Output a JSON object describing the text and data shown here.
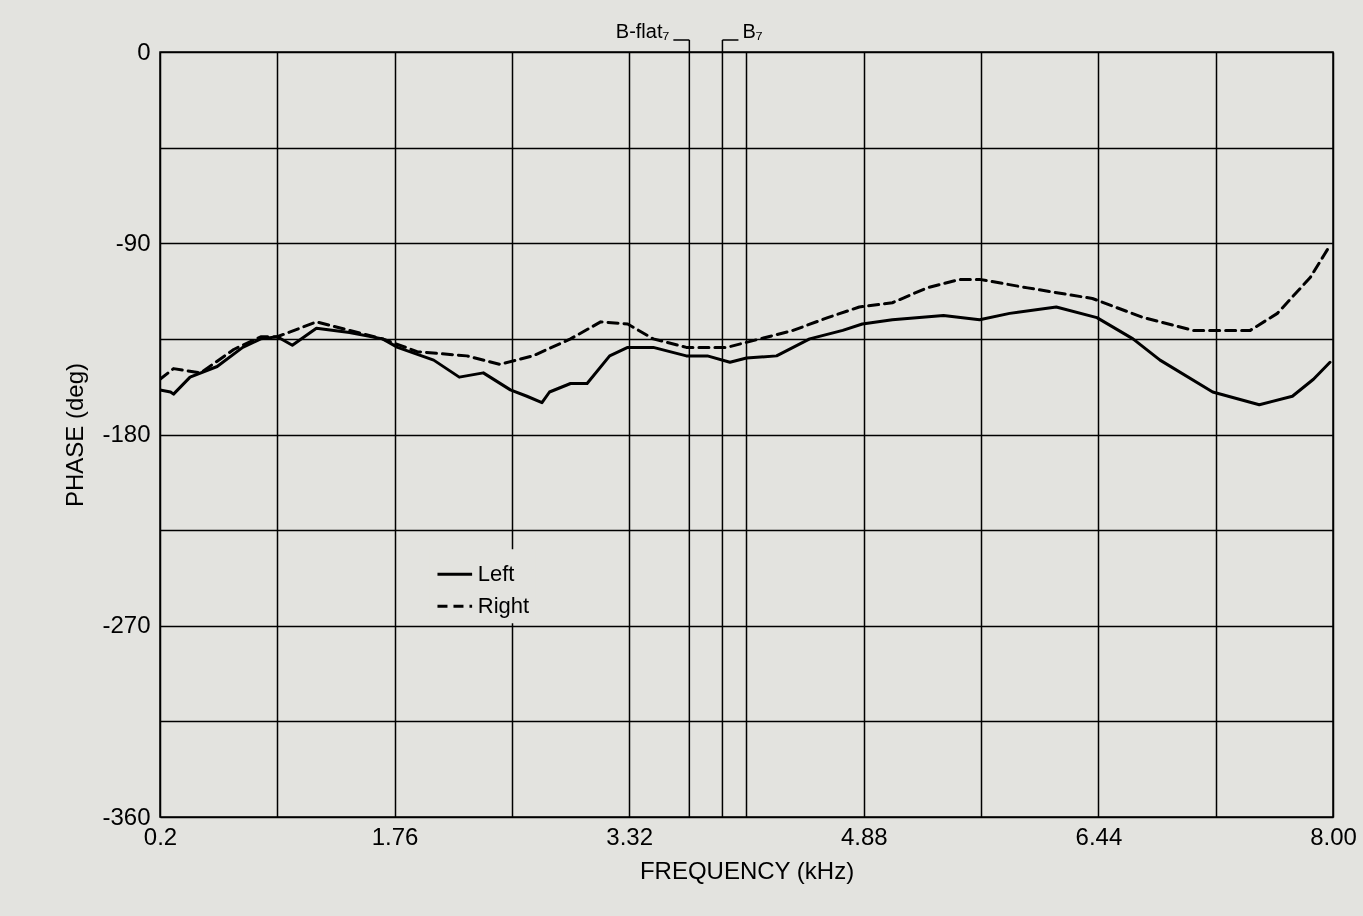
{
  "chart_data": {
    "type": "line",
    "xlabel": "FREQUENCY (kHz)",
    "ylabel": "PHASE (deg)",
    "xlim": [
      0.2,
      8.0
    ],
    "ylim": [
      -360,
      0
    ],
    "xticks": [
      0.2,
      {
        "value": 0.98,
        "label": null
      },
      1.76,
      {
        "value": 2.54,
        "label": null
      },
      3.32,
      {
        "value": 4.1,
        "label": null
      },
      4.88,
      {
        "value": 5.66,
        "label": null
      },
      6.44,
      {
        "value": 7.22,
        "label": null
      },
      {
        "value": 8.0,
        "label": "8.00"
      }
    ],
    "yticks": [
      0,
      {
        "value": -45,
        "label": null
      },
      -90,
      {
        "value": -135,
        "label": null
      },
      -180,
      {
        "value": -225,
        "label": null
      },
      -270,
      {
        "value": -315,
        "label": null
      },
      -360
    ],
    "grid": true,
    "legend": "left",
    "ref_lines": [
      {
        "axis": "x",
        "value": 3.72,
        "label": "B-flat₇"
      },
      {
        "axis": "x",
        "value": 3.94,
        "label": "B₇"
      }
    ],
    "series": [
      {
        "name": "Left",
        "color": "#000000",
        "line_style": "solid",
        "x": [
          0.2,
          0.27,
          0.29,
          0.4,
          0.58,
          0.75,
          0.87,
          0.98,
          1.08,
          1.24,
          1.46,
          1.68,
          1.78,
          2.02,
          2.19,
          2.35,
          2.53,
          2.64,
          2.74,
          2.79,
          2.93,
          3.04,
          3.19,
          3.31,
          3.48,
          3.7,
          3.84,
          3.99,
          4.1,
          4.3,
          4.52,
          4.74,
          4.87,
          5.07,
          5.41,
          5.65,
          5.85,
          6.16,
          6.43,
          6.67,
          6.85,
          7.2,
          7.51,
          7.73,
          7.87,
          7.98
        ],
        "values": [
          -159,
          -160,
          -161,
          -153,
          -148,
          -139,
          -135,
          -134,
          -138,
          -130,
          -132,
          -135,
          -139,
          -145,
          -153,
          -151,
          -159,
          -162,
          -165,
          -160,
          -156,
          -156,
          -143,
          -139,
          -139,
          -143,
          -143,
          -146,
          -144,
          -143,
          -135,
          -131,
          -128,
          -126,
          -124,
          -126,
          -123,
          -120,
          -125,
          -135,
          -145,
          -160,
          -166,
          -162,
          -154,
          -146
        ]
      },
      {
        "name": "Right",
        "color": "#000000",
        "line_style": "dashed",
        "x": [
          0.2,
          0.29,
          0.47,
          0.69,
          0.87,
          0.98,
          1.24,
          1.46,
          1.68,
          1.91,
          2.24,
          2.46,
          2.68,
          2.93,
          3.13,
          3.31,
          3.48,
          3.7,
          3.97,
          4.19,
          4.41,
          4.64,
          4.85,
          5.07,
          5.3,
          5.52,
          5.65,
          5.97,
          6.4,
          6.74,
          7.07,
          7.45,
          7.63,
          7.85,
          7.98
        ],
        "values": [
          -154,
          -149,
          -151,
          -140,
          -134,
          -134,
          -127,
          -131,
          -135,
          -141,
          -143,
          -147,
          -143,
          -135,
          -127,
          -128,
          -135,
          -139,
          -139,
          -135,
          -131,
          -125,
          -120,
          -118,
          -111,
          -107,
          -107,
          -111,
          -116,
          -125,
          -131,
          -131,
          -123,
          -106,
          -91
        ]
      }
    ]
  }
}
